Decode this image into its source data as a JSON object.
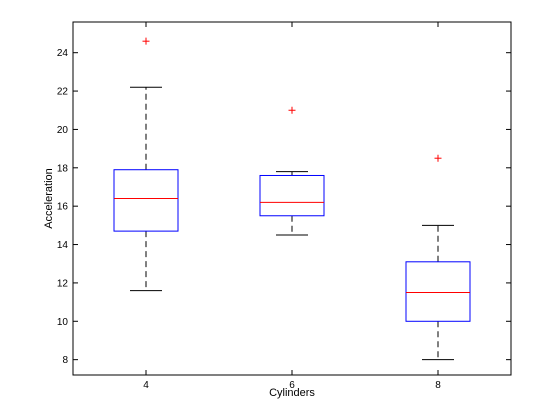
{
  "chart_data": {
    "type": "box",
    "xlabel": "Cylinders",
    "ylabel": "Acceleration",
    "ylim": [
      7.2,
      25.6
    ],
    "yticks": [
      8,
      10,
      12,
      14,
      16,
      18,
      20,
      22,
      24
    ],
    "grid": false,
    "colors": {
      "box": "#0000ff",
      "median": "#ff0000",
      "whisker": "#000000",
      "outlier": "#ff0000",
      "axis": "#000000"
    },
    "groups": [
      {
        "label": "4",
        "lower_whisker": 11.6,
        "q1": 14.7,
        "median": 16.4,
        "q3": 17.9,
        "upper_whisker": 22.2,
        "outliers": [
          24.6
        ]
      },
      {
        "label": "6",
        "lower_whisker": 14.5,
        "q1": 15.5,
        "median": 16.2,
        "q3": 17.6,
        "upper_whisker": 17.8,
        "outliers": [
          21.0
        ]
      },
      {
        "label": "8",
        "lower_whisker": 8.0,
        "q1": 10.0,
        "median": 11.5,
        "q3": 13.1,
        "upper_whisker": 15.0,
        "outliers": [
          18.5
        ]
      }
    ]
  }
}
